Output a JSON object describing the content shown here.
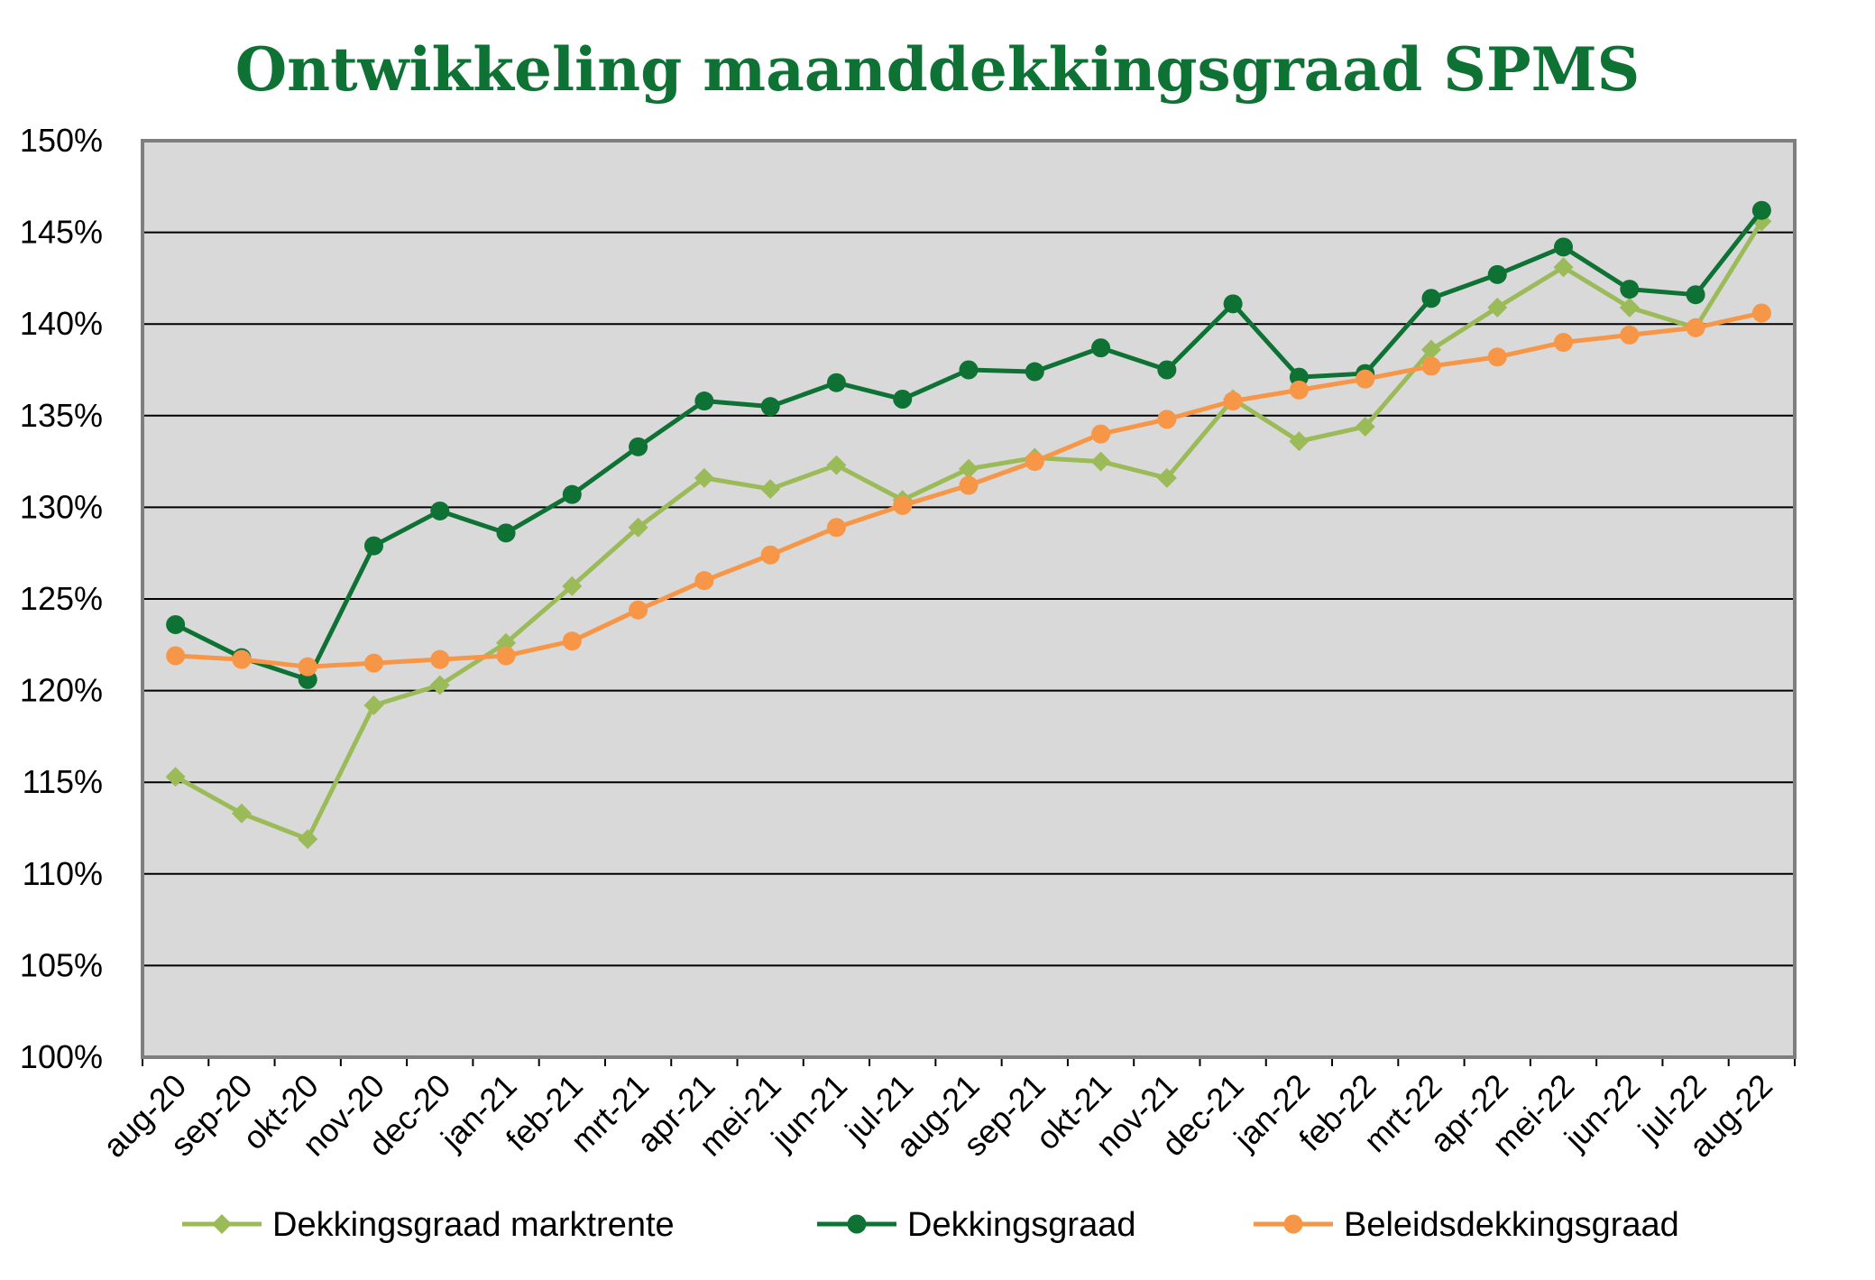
{
  "chart_data": {
    "type": "line",
    "title": "Ontwikkeling maanddekkingsgraad SPMS",
    "xlabel": "",
    "ylabel": "",
    "ylim": [
      100,
      150
    ],
    "y_tick_step": 5,
    "y_tick_format": "percent",
    "grid": true,
    "legend_position": "bottom",
    "categories": [
      "aug-20",
      "sep-20",
      "okt-20",
      "nov-20",
      "dec-20",
      "jan-21",
      "feb-21",
      "mrt-21",
      "apr-21",
      "mei-21",
      "jun-21",
      "jul-21",
      "aug-21",
      "sep-21",
      "okt-21",
      "nov-21",
      "dec-21",
      "jan-22",
      "feb-22",
      "mrt-22",
      "apr-22",
      "mei-22",
      "jun-22",
      "jul-22",
      "aug-22"
    ],
    "series": [
      {
        "name": "Dekkingsgraad marktrente",
        "color": "#9BBB59",
        "marker": "diamond",
        "values": [
          115.3,
          113.3,
          111.9,
          119.2,
          120.3,
          122.6,
          125.7,
          128.9,
          131.6,
          131.0,
          132.3,
          130.4,
          132.1,
          132.7,
          132.5,
          131.6,
          135.9,
          133.6,
          134.4,
          138.6,
          140.9,
          143.1,
          140.9,
          139.8,
          145.6
        ]
      },
      {
        "name": "Dekkingsgraad",
        "color": "#0E7234",
        "marker": "circle",
        "values": [
          123.6,
          121.8,
          120.6,
          127.9,
          129.8,
          128.6,
          130.7,
          133.3,
          135.8,
          135.5,
          136.8,
          135.9,
          137.5,
          137.4,
          138.7,
          137.5,
          141.1,
          137.1,
          137.3,
          141.4,
          142.7,
          144.2,
          141.9,
          141.6,
          146.2
        ]
      },
      {
        "name": "Beleidsdekkingsgraad",
        "color": "#F79646",
        "marker": "circle",
        "values": [
          121.9,
          121.7,
          121.3,
          121.5,
          121.7,
          121.9,
          122.7,
          124.4,
          126.0,
          127.4,
          128.9,
          130.1,
          131.2,
          132.5,
          134.0,
          134.8,
          135.8,
          136.4,
          137.0,
          137.7,
          138.2,
          139.0,
          139.4,
          139.8,
          140.6
        ]
      }
    ]
  },
  "colors": {
    "title": "#0E7234",
    "plot_background": "#D9D9D9",
    "plot_border": "#7F7F7F",
    "gridline": "#000000"
  }
}
